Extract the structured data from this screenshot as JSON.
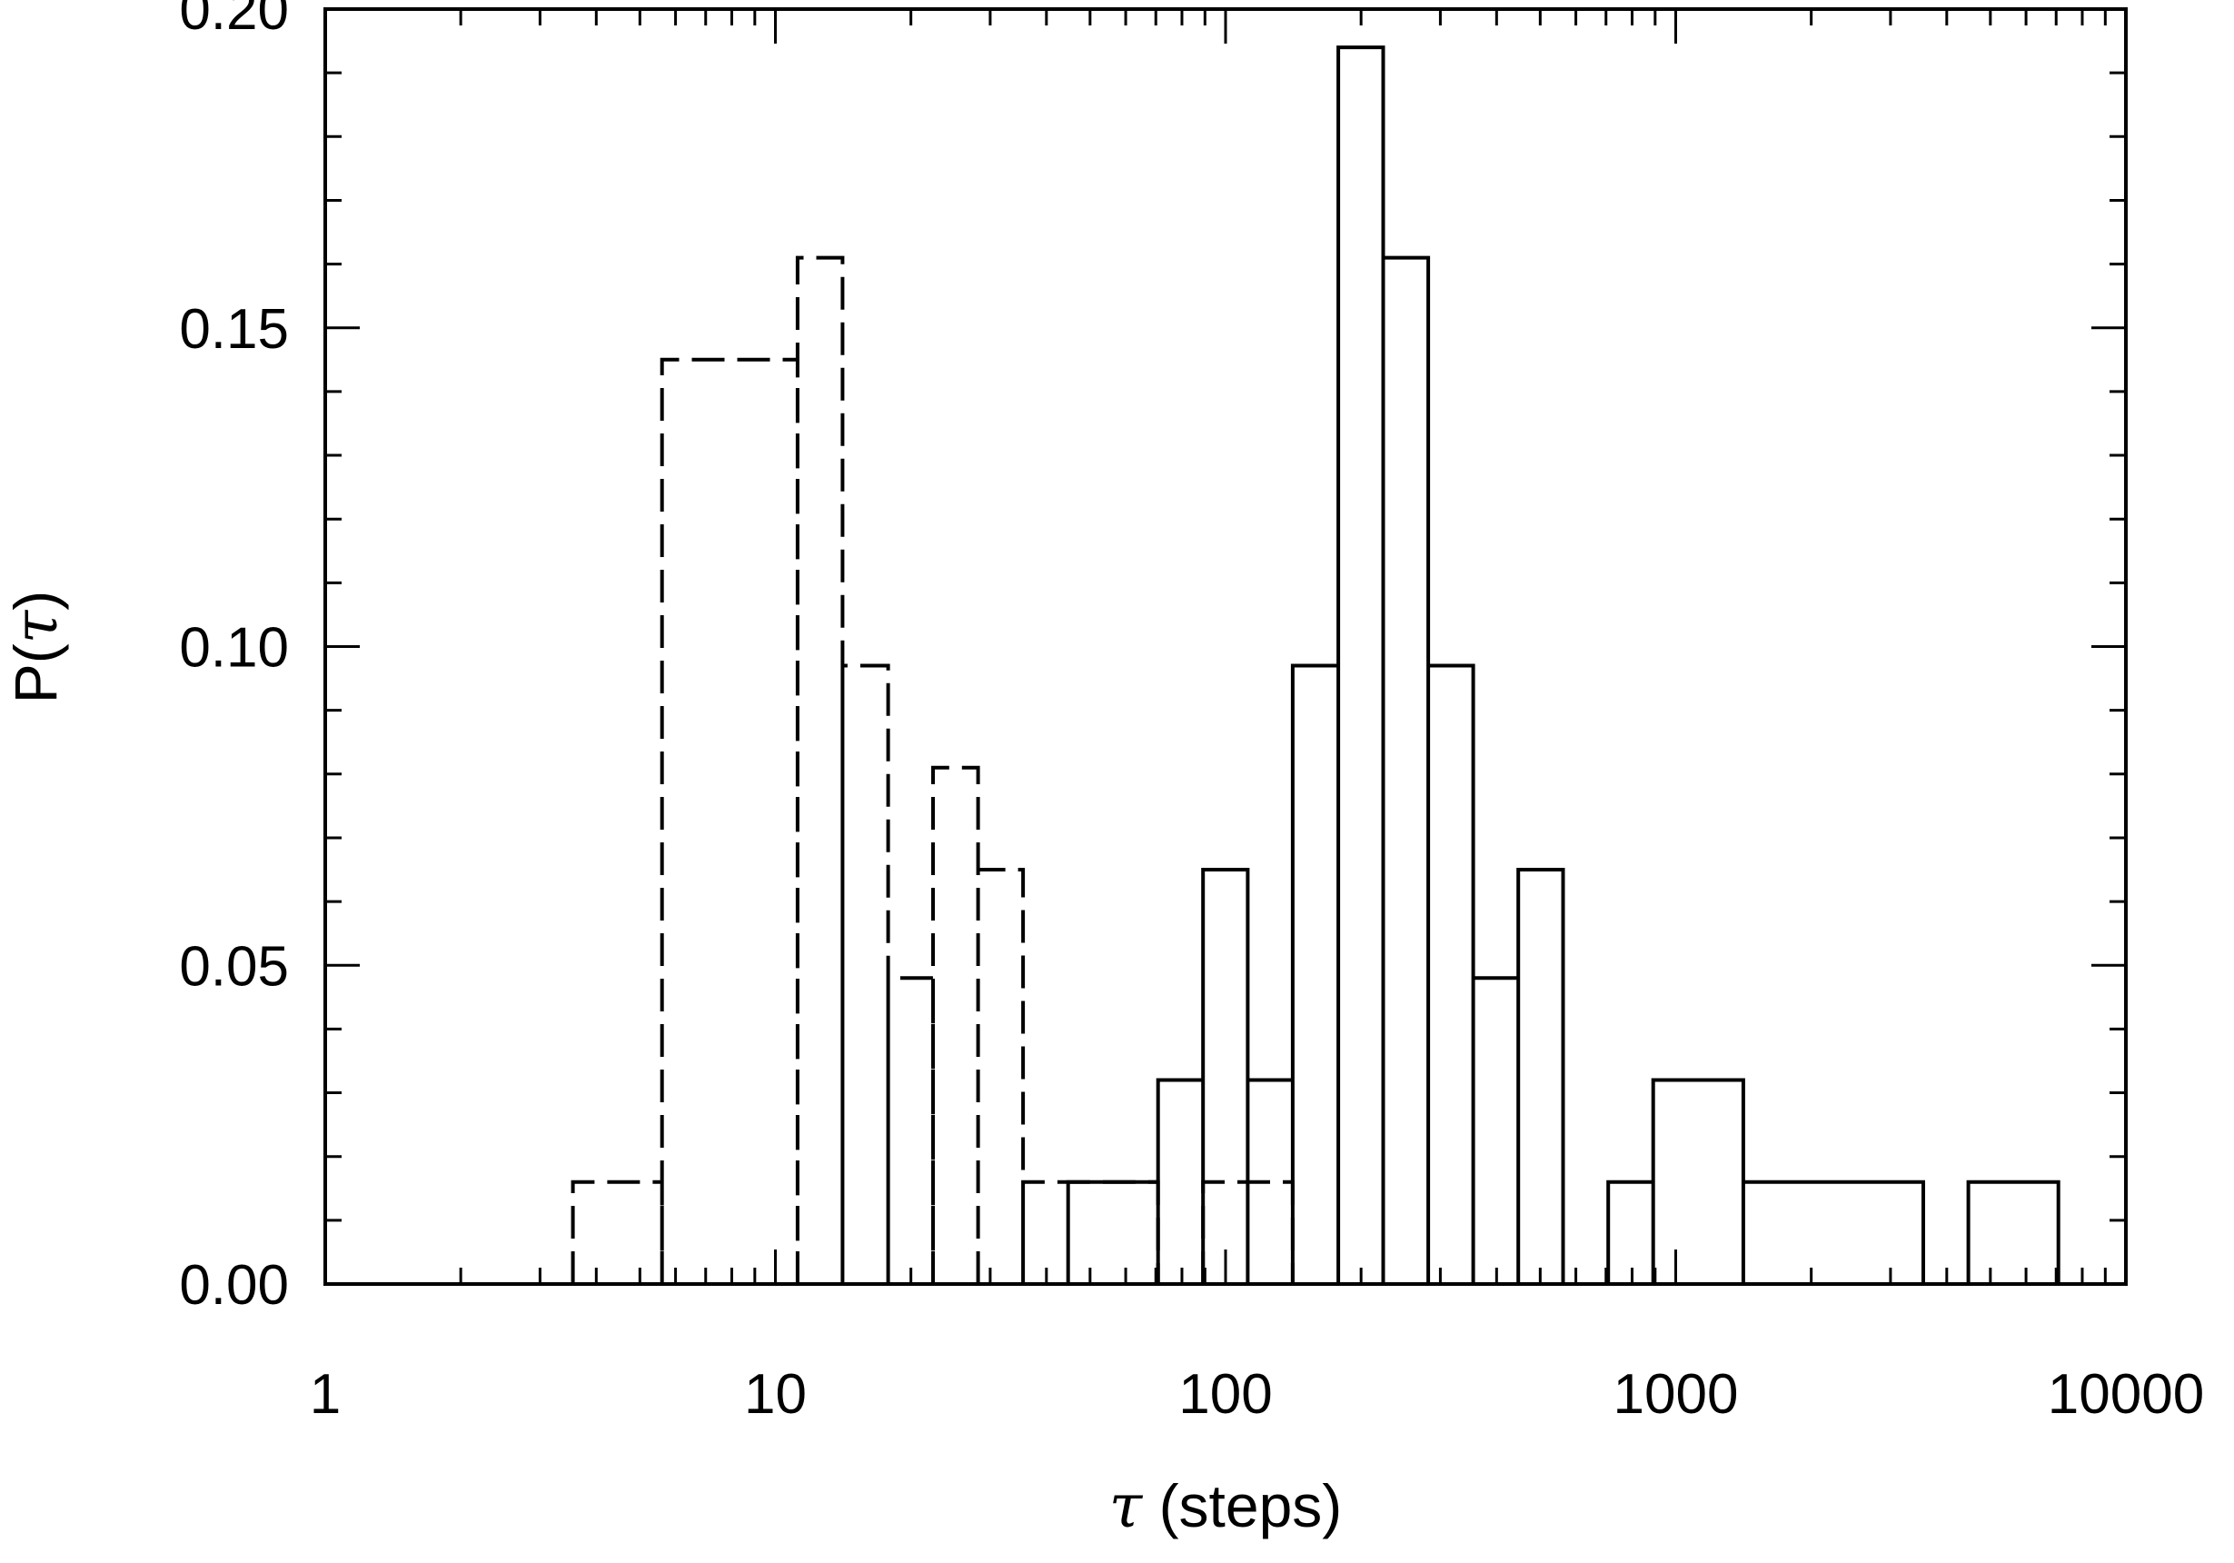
{
  "chart_data": {
    "type": "histogram-step",
    "xlabel": {
      "symbol": "τ",
      "text": " (steps)"
    },
    "ylabel": {
      "prefix": "P(",
      "symbol": "τ",
      "suffix": ")"
    },
    "xscale": "log",
    "xlim": [
      1,
      10000
    ],
    "ylim": [
      0,
      0.2
    ],
    "x_ticks": [
      1,
      10,
      100,
      1000,
      10000
    ],
    "x_tick_labels": [
      "1",
      "10",
      "100",
      "1000",
      "10000"
    ],
    "y_ticks": [
      0,
      0.05,
      0.1,
      0.15,
      0.2
    ],
    "y_tick_labels": [
      "0.00",
      "0.05",
      "0.10",
      "0.15",
      "0.20"
    ],
    "grid": false,
    "series": [
      {
        "style": "dashed",
        "color": "#000000",
        "edges": [
          3.55,
          5.6,
          11.2,
          14.1,
          17.8,
          22.4,
          28.2,
          35.5,
          70.8,
          89.1,
          141
        ],
        "values": [
          0.016,
          0.145,
          0.161,
          0.097,
          0.048,
          0.081,
          0.065,
          0.016,
          0.0,
          0.016
        ]
      },
      {
        "style": "solid",
        "color": "#000000",
        "edges": [
          44.7,
          70.8,
          89.1,
          112,
          141,
          178,
          224,
          282,
          355,
          447,
          562,
          708,
          891,
          1413,
          3548,
          4467,
          7079
        ],
        "values": [
          0.016,
          0.032,
          0.065,
          0.032,
          0.097,
          0.194,
          0.161,
          0.097,
          0.048,
          0.065,
          0.0,
          0.016,
          0.032,
          0.016,
          0.0,
          0.016
        ]
      }
    ]
  }
}
